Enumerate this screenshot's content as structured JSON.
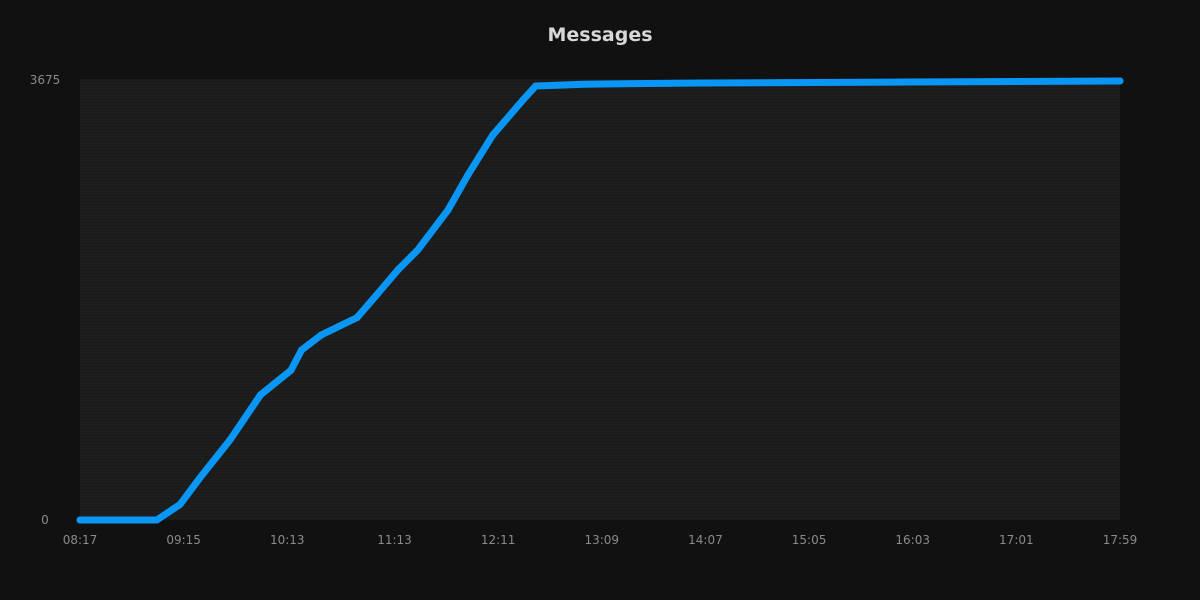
{
  "chart_data": {
    "type": "line",
    "title": "Messages",
    "xlabel": "",
    "ylabel": "",
    "x_ticks": [
      "08:17",
      "09:15",
      "10:13",
      "11:13",
      "12:11",
      "13:09",
      "14:07",
      "15:05",
      "16:03",
      "17:01",
      "17:59"
    ],
    "y_ticks": [
      "0",
      "3675"
    ],
    "ylim": [
      0,
      3675
    ],
    "xlim": [
      "08:17",
      "17:59"
    ],
    "grid": true,
    "line_color": "#0a96f5",
    "series": [
      {
        "x": [
          "08:17",
          "09:00",
          "09:13",
          "09:24",
          "09:41",
          "09:58",
          "10:15",
          "10:21",
          "10:32",
          "10:52",
          "11:03",
          "11:15",
          "11:26",
          "11:43",
          "11:54",
          "12:08",
          "12:25",
          "12:32",
          "12:59",
          "14:06",
          "15:58",
          "17:59"
        ],
        "values": [
          0,
          0,
          130,
          350,
          670,
          1045,
          1250,
          1420,
          1545,
          1690,
          1880,
          2090,
          2255,
          2590,
          2880,
          3215,
          3510,
          3625,
          3640,
          3650,
          3658,
          3667
        ]
      }
    ]
  }
}
